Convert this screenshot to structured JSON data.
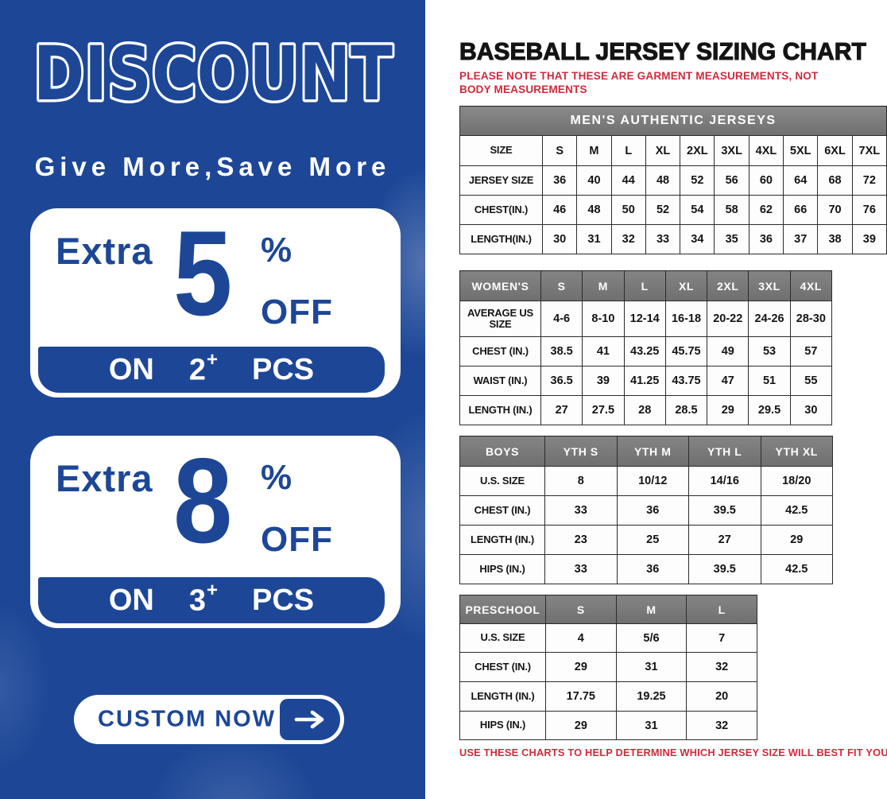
{
  "left_panel": {
    "brand_blue": "#1d4796",
    "headline": "DISCOUNT",
    "subtitle": "Give More,Save More",
    "offers": [
      {
        "prefix": "Extra",
        "value": "5",
        "unit": "%",
        "off_label": "OFF",
        "on_label": "ON",
        "qty": "2",
        "plus": "+",
        "pcs_label": "PCS"
      },
      {
        "prefix": "Extra",
        "value": "8",
        "unit": "%",
        "off_label": "OFF",
        "on_label": "ON",
        "qty": "3",
        "plus": "+",
        "pcs_label": "PCS"
      }
    ],
    "cta": {
      "label": "CUSTOM NOW",
      "arrow_icon": "right-arrow"
    }
  },
  "right_panel": {
    "title": "BASEBALL JERSEY SIZING CHART",
    "top_note": "PLEASE NOTE THAT THESE ARE GARMENT MEASUREMENTS, NOT BODY MEASUREMENTS",
    "bottom_note": "USE THESE CHARTS TO HELP DETERMINE WHICH JERSEY SIZE WILL BEST FIT YOU.",
    "colors": {
      "note_red": "#cf2a3c",
      "header_gray": "#757575",
      "border_dark": "#2b2b2b"
    },
    "tables": [
      {
        "id": "mens",
        "banner": "MEN'S AUTHENTIC JERSEYS",
        "header_row_gray": false,
        "rows": [
          [
            "SIZE",
            "S",
            "M",
            "L",
            "XL",
            "2XL",
            "3XL",
            "4XL",
            "5XL",
            "6XL",
            "7XL"
          ],
          [
            "JERSEY SIZE",
            "36",
            "40",
            "44",
            "48",
            "52",
            "56",
            "60",
            "64",
            "68",
            "72"
          ],
          [
            "CHEST(IN.)",
            "46",
            "48",
            "50",
            "52",
            "54",
            "58",
            "62",
            "66",
            "70",
            "76"
          ],
          [
            "LENGTH(IN.)",
            "30",
            "31",
            "32",
            "33",
            "34",
            "35",
            "36",
            "37",
            "38",
            "39"
          ]
        ]
      },
      {
        "id": "womens",
        "banner": null,
        "header_row_gray": true,
        "rows": [
          [
            "WOMEN'S",
            "S",
            "M",
            "L",
            "XL",
            "2XL",
            "3XL",
            "4XL"
          ],
          [
            "AVERAGE US SIZE",
            "4-6",
            "8-10",
            "12-14",
            "16-18",
            "20-22",
            "24-26",
            "28-30"
          ],
          [
            "CHEST (IN.)",
            "38.5",
            "41",
            "43.25",
            "45.75",
            "49",
            "53",
            "57"
          ],
          [
            "WAIST (IN.)",
            "36.5",
            "39",
            "41.25",
            "43.75",
            "47",
            "51",
            "55"
          ],
          [
            "LENGTH (IN.)",
            "27",
            "27.5",
            "28",
            "28.5",
            "29",
            "29.5",
            "30"
          ]
        ]
      },
      {
        "id": "boys",
        "banner": null,
        "header_row_gray": true,
        "rows": [
          [
            "BOYS",
            "YTH S",
            "YTH M",
            "YTH L",
            "YTH XL"
          ],
          [
            "U.S. SIZE",
            "8",
            "10/12",
            "14/16",
            "18/20"
          ],
          [
            "CHEST (IN.)",
            "33",
            "36",
            "39.5",
            "42.5"
          ],
          [
            "LENGTH (IN.)",
            "23",
            "25",
            "27",
            "29"
          ],
          [
            "HIPS (IN.)",
            "33",
            "36",
            "39.5",
            "42.5"
          ]
        ]
      },
      {
        "id": "preschool",
        "banner": null,
        "header_row_gray": true,
        "rows": [
          [
            "PRESCHOOL",
            "S",
            "M",
            "L"
          ],
          [
            "U.S. SIZE",
            "4",
            "5/6",
            "7"
          ],
          [
            "CHEST (IN.)",
            "29",
            "31",
            "32"
          ],
          [
            "LENGTH (IN.)",
            "17.75",
            "19.25",
            "20"
          ],
          [
            "HIPS (IN.)",
            "29",
            "31",
            "32"
          ]
        ]
      }
    ]
  }
}
